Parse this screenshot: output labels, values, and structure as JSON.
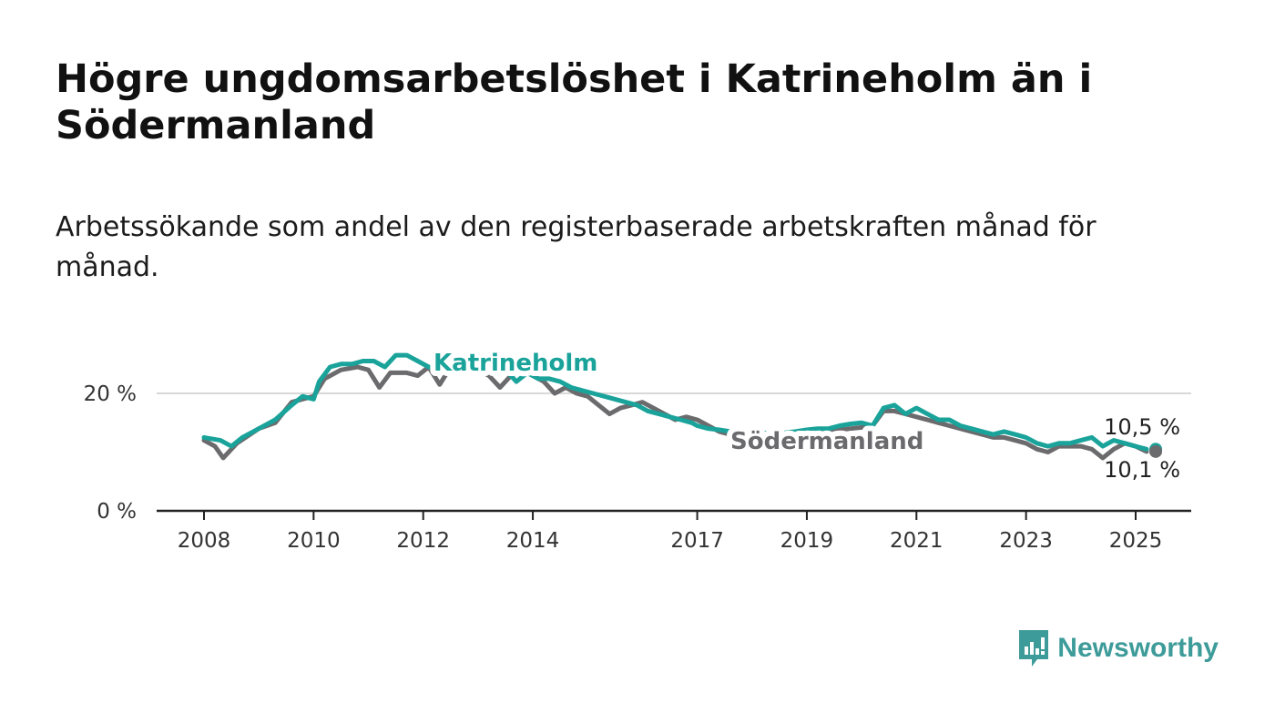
{
  "title": "Högre ungdomsarbetslöshet i Katrineholm än i Södermanland",
  "subtitle": "Arbetssökande som andel av den registerbaserade arbetskraften månad för månad.",
  "brand": {
    "name": "Newsworthy",
    "icon": "newsworthy-logo-icon",
    "color": "#3d9b99"
  },
  "colors": {
    "katrineholm": "#1aa39a",
    "sodermanland": "#6b6b6e",
    "axis": "#222222",
    "grid": "#d8d8d8"
  },
  "chart_data": {
    "type": "line",
    "y_ticks": [
      {
        "value": 0,
        "label": "0 %"
      },
      {
        "value": 20,
        "label": "20 %"
      }
    ],
    "ylim": [
      0,
      30
    ],
    "xlim": [
      2008.0,
      2025.9
    ],
    "x_ticks": [
      "2008",
      "2010",
      "2012",
      "2014",
      "2017",
      "2019",
      "2021",
      "2023",
      "2025"
    ],
    "grid": "horizontal",
    "series": [
      {
        "name": "Katrineholm",
        "color": "#1aa39a",
        "label_position": "above",
        "end_label": "10,5 %",
        "points": [
          [
            2008.0,
            12.5
          ],
          [
            2008.3,
            12.0
          ],
          [
            2008.5,
            11.0
          ],
          [
            2008.7,
            12.5
          ],
          [
            2009.0,
            14.0
          ],
          [
            2009.3,
            15.5
          ],
          [
            2009.6,
            18.0
          ],
          [
            2009.8,
            19.5
          ],
          [
            2010.0,
            19.0
          ],
          [
            2010.1,
            22.0
          ],
          [
            2010.3,
            24.5
          ],
          [
            2010.5,
            25.0
          ],
          [
            2010.7,
            25.0
          ],
          [
            2010.9,
            25.5
          ],
          [
            2011.1,
            25.5
          ],
          [
            2011.3,
            24.5
          ],
          [
            2011.5,
            26.5
          ],
          [
            2011.7,
            26.5
          ],
          [
            2011.9,
            25.5
          ],
          [
            2012.1,
            24.5
          ],
          [
            2012.3,
            24.0
          ],
          [
            2012.5,
            23.5
          ],
          [
            2012.7,
            24.5
          ],
          [
            2012.9,
            25.5
          ],
          [
            2013.1,
            26.5
          ],
          [
            2013.3,
            25.0
          ],
          [
            2013.5,
            24.0
          ],
          [
            2013.7,
            22.0
          ],
          [
            2013.9,
            23.5
          ],
          [
            2014.1,
            22.5
          ],
          [
            2014.3,
            22.5
          ],
          [
            2014.5,
            22.0
          ],
          [
            2014.7,
            21.0
          ],
          [
            2014.9,
            20.5
          ],
          [
            2015.1,
            20.0
          ],
          [
            2015.3,
            19.5
          ],
          [
            2015.5,
            19.0
          ],
          [
            2015.7,
            18.5
          ],
          [
            2015.9,
            18.0
          ],
          [
            2016.1,
            17.0
          ],
          [
            2016.3,
            16.5
          ],
          [
            2016.5,
            16.0
          ],
          [
            2016.7,
            15.5
          ],
          [
            2016.9,
            15.0
          ],
          [
            2017.0,
            14.5
          ],
          [
            2017.2,
            14.0
          ],
          [
            2017.4,
            13.8
          ],
          [
            2017.6,
            13.5
          ],
          [
            2017.8,
            13.5
          ],
          [
            2018.0,
            13.2
          ],
          [
            2018.2,
            13.3
          ],
          [
            2018.4,
            13.0
          ],
          [
            2018.6,
            13.3
          ],
          [
            2018.8,
            13.5
          ],
          [
            2019.0,
            13.8
          ],
          [
            2019.2,
            14.0
          ],
          [
            2019.4,
            14.0
          ],
          [
            2019.6,
            14.5
          ],
          [
            2019.8,
            14.8
          ],
          [
            2020.0,
            15.0
          ],
          [
            2020.2,
            14.5
          ],
          [
            2020.4,
            17.5
          ],
          [
            2020.6,
            18.0
          ],
          [
            2020.8,
            16.5
          ],
          [
            2021.0,
            17.5
          ],
          [
            2021.2,
            16.5
          ],
          [
            2021.4,
            15.5
          ],
          [
            2021.6,
            15.5
          ],
          [
            2021.8,
            14.5
          ],
          [
            2022.0,
            14.0
          ],
          [
            2022.2,
            13.5
          ],
          [
            2022.4,
            13.0
          ],
          [
            2022.6,
            13.5
          ],
          [
            2022.8,
            13.0
          ],
          [
            2023.0,
            12.5
          ],
          [
            2023.2,
            11.5
          ],
          [
            2023.4,
            11.0
          ],
          [
            2023.6,
            11.5
          ],
          [
            2023.8,
            11.5
          ],
          [
            2024.0,
            12.0
          ],
          [
            2024.2,
            12.5
          ],
          [
            2024.4,
            11.0
          ],
          [
            2024.6,
            12.0
          ],
          [
            2024.8,
            11.5
          ],
          [
            2025.0,
            11.0
          ],
          [
            2025.2,
            10.5
          ]
        ]
      },
      {
        "name": "Södermanland",
        "color": "#6b6b6e",
        "label_position": "below",
        "end_label": "10,1 %",
        "points": [
          [
            2008.0,
            12.0
          ],
          [
            2008.2,
            11.0
          ],
          [
            2008.35,
            9.0
          ],
          [
            2008.6,
            11.5
          ],
          [
            2009.0,
            14.0
          ],
          [
            2009.3,
            15.0
          ],
          [
            2009.6,
            18.5
          ],
          [
            2009.8,
            19.0
          ],
          [
            2010.0,
            19.5
          ],
          [
            2010.2,
            22.5
          ],
          [
            2010.5,
            24.0
          ],
          [
            2010.8,
            24.5
          ],
          [
            2011.0,
            24.0
          ],
          [
            2011.2,
            21.0
          ],
          [
            2011.4,
            23.5
          ],
          [
            2011.7,
            23.5
          ],
          [
            2011.9,
            23.0
          ],
          [
            2012.1,
            24.5
          ],
          [
            2012.3,
            21.5
          ],
          [
            2012.5,
            24.5
          ],
          [
            2012.8,
            25.5
          ],
          [
            2013.0,
            24.0
          ],
          [
            2013.2,
            23.0
          ],
          [
            2013.4,
            21.0
          ],
          [
            2013.6,
            23.0
          ],
          [
            2013.8,
            24.0
          ],
          [
            2014.0,
            23.0
          ],
          [
            2014.2,
            22.0
          ],
          [
            2014.4,
            20.0
          ],
          [
            2014.6,
            21.0
          ],
          [
            2014.8,
            20.0
          ],
          [
            2015.0,
            19.5
          ],
          [
            2015.2,
            18.0
          ],
          [
            2015.4,
            16.5
          ],
          [
            2015.6,
            17.5
          ],
          [
            2015.8,
            18.0
          ],
          [
            2016.0,
            18.5
          ],
          [
            2016.2,
            17.5
          ],
          [
            2016.4,
            16.5
          ],
          [
            2016.6,
            15.5
          ],
          [
            2016.8,
            16.0
          ],
          [
            2017.0,
            15.5
          ],
          [
            2017.2,
            14.5
          ],
          [
            2017.4,
            13.5
          ],
          [
            2017.6,
            13.0
          ],
          [
            2017.8,
            13.0
          ],
          [
            2018.0,
            12.8
          ],
          [
            2018.2,
            12.5
          ],
          [
            2018.4,
            12.5
          ],
          [
            2018.6,
            12.8
          ],
          [
            2018.8,
            13.0
          ],
          [
            2019.0,
            13.2
          ],
          [
            2019.2,
            13.5
          ],
          [
            2019.4,
            13.5
          ],
          [
            2019.6,
            13.8
          ],
          [
            2019.8,
            14.0
          ],
          [
            2020.0,
            14.2
          ],
          [
            2020.2,
            14.5
          ],
          [
            2020.4,
            17.0
          ],
          [
            2020.6,
            17.0
          ],
          [
            2020.8,
            16.5
          ],
          [
            2021.0,
            16.0
          ],
          [
            2021.2,
            15.5
          ],
          [
            2021.4,
            15.0
          ],
          [
            2021.6,
            14.5
          ],
          [
            2021.8,
            14.0
          ],
          [
            2022.0,
            13.5
          ],
          [
            2022.2,
            13.0
          ],
          [
            2022.4,
            12.5
          ],
          [
            2022.6,
            12.5
          ],
          [
            2022.8,
            12.0
          ],
          [
            2023.0,
            11.5
          ],
          [
            2023.2,
            10.5
          ],
          [
            2023.4,
            10.0
          ],
          [
            2023.6,
            11.0
          ],
          [
            2023.8,
            11.0
          ],
          [
            2024.0,
            11.0
          ],
          [
            2024.2,
            10.5
          ],
          [
            2024.4,
            9.0
          ],
          [
            2024.6,
            10.5
          ],
          [
            2024.8,
            11.5
          ],
          [
            2025.0,
            11.0
          ],
          [
            2025.2,
            10.1
          ]
        ]
      }
    ]
  }
}
